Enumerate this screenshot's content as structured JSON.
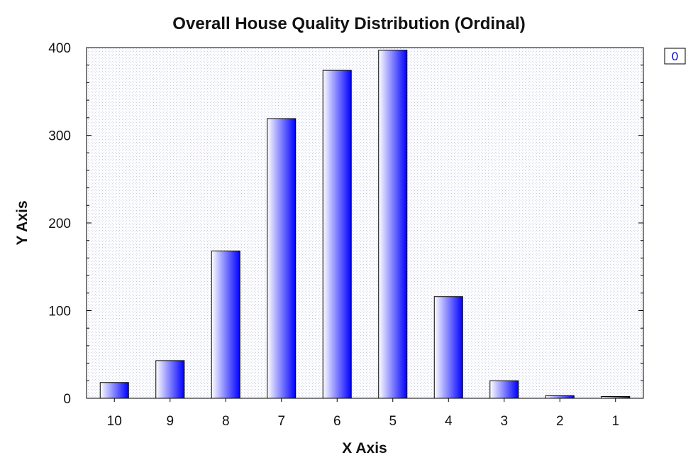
{
  "chart_data": {
    "type": "bar",
    "title": "Overall House Quality Distribution (Ordinal)",
    "xlabel": "X Axis",
    "ylabel": "Y Axis",
    "categories": [
      "10",
      "9",
      "8",
      "7",
      "6",
      "5",
      "4",
      "3",
      "2",
      "1"
    ],
    "series": [
      {
        "name": "0",
        "values": [
          18,
          43,
          168,
          319,
          374,
          397,
          116,
          20,
          3,
          2
        ]
      }
    ],
    "ylim": [
      0,
      400
    ],
    "yticks": [
      0,
      100,
      200,
      300,
      400
    ],
    "grid": false,
    "legend_position": "top-right",
    "colors": {
      "bar_light": "#ffffff",
      "bar_dark": "#0000ff",
      "plot_background": "#fcfcff",
      "legend_text": "#0000cc"
    }
  }
}
